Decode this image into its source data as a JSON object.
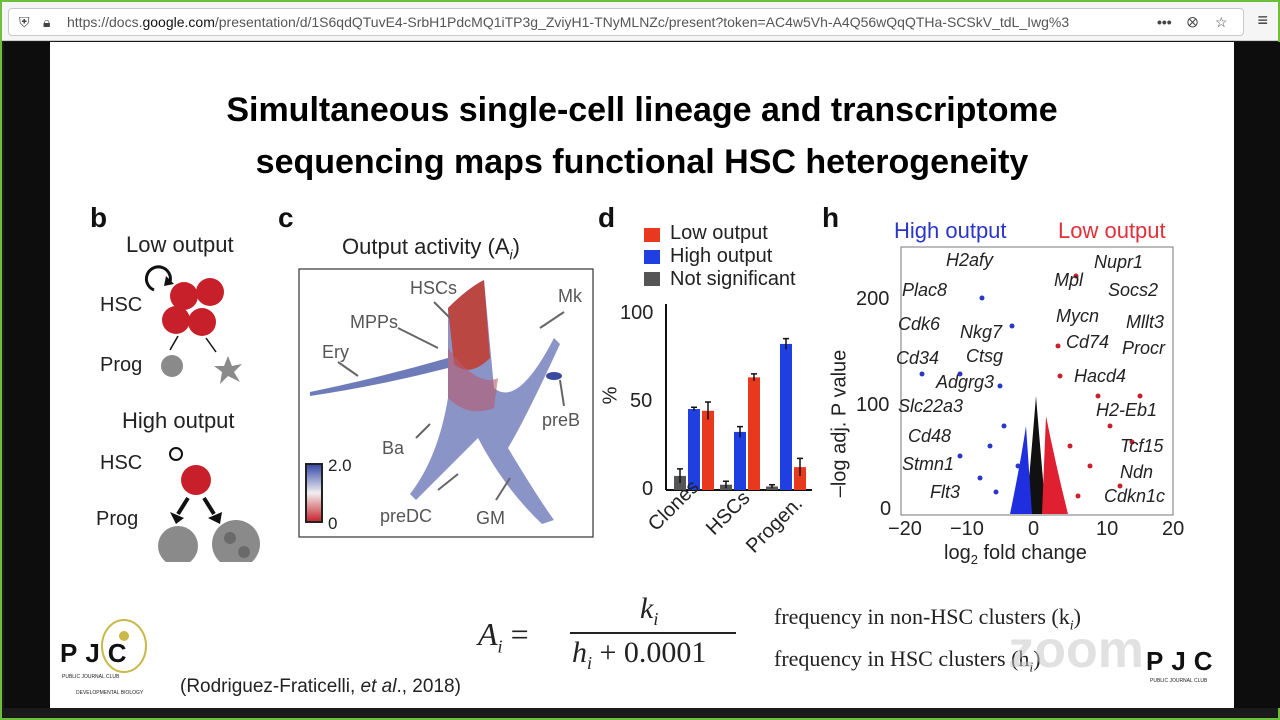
{
  "browser": {
    "url_prefix": "https://docs.",
    "url_domain": "google.com",
    "url_rest": "/presentation/d/1S6qdQTuvE4-SrbH1PdcMQ1iTP3g_ZviyH1-TNyMLNZc/present?token=AC4w5Vh-A4Q56wQqQTHa-SCSkV_tdL_Iwg%3",
    "more_label": "•••",
    "menu_label": "≡",
    "icons": [
      "shield-icon",
      "lock-icon",
      "more-icon",
      "pocket-icon",
      "star-icon",
      "menu-icon"
    ]
  },
  "slide": {
    "title_line1": "Simultaneous single-cell lineage and transcriptome",
    "title_line2": "sequencing maps functional HSC heterogeneity",
    "panel_b": {
      "label": "b",
      "low_output": "Low output",
      "high_output": "High output",
      "hsc": "HSC",
      "prog": "Prog"
    },
    "panel_c": {
      "label": "c",
      "title": "Output activity (A",
      "title_sub": "i",
      "title_end": ")",
      "clusters": [
        "HSCs",
        "MPPs",
        "Mk",
        "Ery",
        "preB",
        "Ba",
        "preDC",
        "GM"
      ],
      "scale_max": "2.0",
      "scale_min": "0"
    },
    "panel_d": {
      "label": "d",
      "legend": [
        "Low output",
        "High output",
        "Not significant"
      ],
      "ylabel": "%",
      "yticks": [
        "100",
        "50",
        "0"
      ],
      "categories": [
        "Clones",
        "HSCs",
        "Progen."
      ]
    },
    "panel_h": {
      "label": "h",
      "high_output": "High output",
      "low_output": "Low output",
      "ylabel": "–log adj. P value",
      "xlabel_pre": "log",
      "xlabel_sub": "2",
      "xlabel_post": " fold change",
      "yticks": [
        "200",
        "100",
        "0"
      ],
      "xticks": [
        "−20",
        "−10",
        "0",
        "10",
        "20"
      ],
      "genes_left": [
        "H2afy",
        "Plac8",
        "Cdk6",
        "Nkg7",
        "Cd34",
        "Ctsg",
        "Adgrg3",
        "Slc22a3",
        "Cd48",
        "Stmn1",
        "Flt3"
      ],
      "genes_right": [
        "Nupr1",
        "Mpl",
        "Socs2",
        "Mycn",
        "Mllt3",
        "Cd74",
        "Procr",
        "Hacd4",
        "H2-Eb1",
        "Tcf15",
        "Ndn",
        "Cdkn1c"
      ]
    },
    "formula": {
      "lhs": "A",
      "lhs_sub": "i",
      "eq": "=",
      "num": "k",
      "num_sub": "i",
      "den": "h",
      "den_sub": "i",
      "den_rest": " + 0.0001",
      "desc1": "frequency in non-HSC clusters (k",
      "desc1_sub": "i",
      "desc1_end": ")",
      "desc2": "frequency in HSC clusters   (h",
      "desc2_sub": "i",
      "desc2_end": ")"
    },
    "citation_pre": "(Rodriguez-Fraticelli, ",
    "citation_etal": "et al",
    "citation_post": "., 2018)",
    "logo_left": "PJC",
    "logo_left_sub1": "PUBLIC JOURNAL CLUB",
    "logo_left_sub2": "DEVELOPMENTAL BIOLOGY",
    "logo_right": "PJC",
    "logo_right_sub": "PUBLIC JOURNAL CLUB",
    "watermark": "zoom"
  },
  "chart_data": {
    "type": "bar",
    "categories": [
      "Clones",
      "HSCs",
      "Progen."
    ],
    "series": [
      {
        "name": "Not significant",
        "color": "#555555",
        "values": [
          8,
          3,
          2
        ],
        "errors": [
          4,
          2,
          1
        ]
      },
      {
        "name": "High output",
        "color": "#1f3fe0",
        "values": [
          46,
          33,
          83
        ],
        "errors": [
          1,
          3,
          3
        ]
      },
      {
        "name": "Low output",
        "color": "#e8391e",
        "values": [
          45,
          64,
          13
        ],
        "errors": [
          5,
          2,
          5
        ]
      }
    ],
    "ylabel": "%",
    "ylim": [
      0,
      100
    ]
  }
}
